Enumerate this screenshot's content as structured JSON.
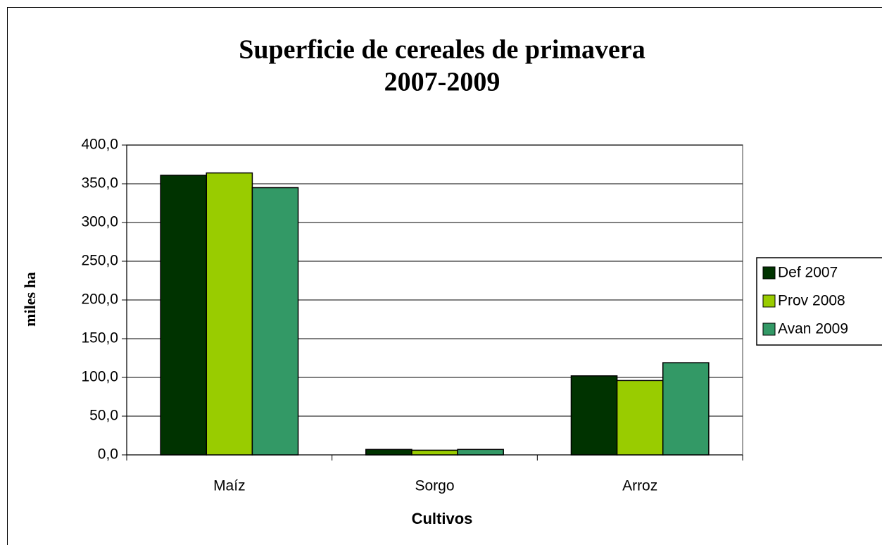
{
  "chart_data": {
    "type": "bar",
    "title": [
      "Superficie de cereales de primavera",
      "2007-2009"
    ],
    "x_label": "Cultivos",
    "y_label": "miles ha",
    "categories": [
      "Maíz",
      "Sorgo",
      "Arroz"
    ],
    "series": [
      {
        "name": "Def 2007",
        "color": "#003300",
        "values": [
          361,
          7,
          102
        ]
      },
      {
        "name": "Prov 2008",
        "color": "#99cc00",
        "values": [
          364,
          6,
          96
        ]
      },
      {
        "name": "Avan 2009",
        "color": "#339966",
        "values": [
          345,
          7,
          119
        ]
      }
    ],
    "ylim": [
      0,
      400
    ],
    "yticks": [
      {
        "value": 0,
        "label": "0,0"
      },
      {
        "value": 50,
        "label": "50,0"
      },
      {
        "value": 100,
        "label": "100,0"
      },
      {
        "value": 150,
        "label": "150,0"
      },
      {
        "value": 200,
        "label": "200,0"
      },
      {
        "value": 250,
        "label": "250,0"
      },
      {
        "value": 300,
        "label": "300,0"
      },
      {
        "value": 350,
        "label": "350,0"
      },
      {
        "value": 400,
        "label": "400,0"
      }
    ],
    "grid": true,
    "legend": "right"
  }
}
